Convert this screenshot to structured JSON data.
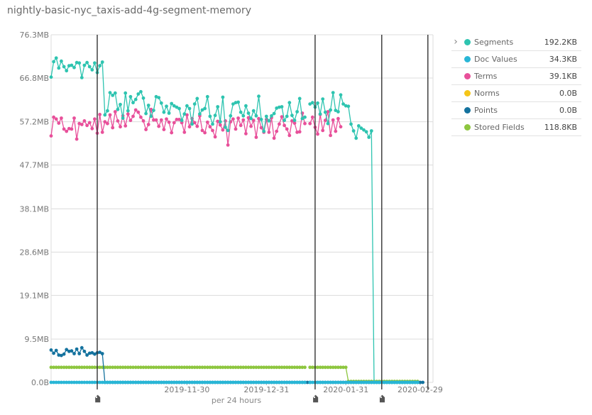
{
  "title": "nightly-basic-nyc_taxis-add-4g-segment-memory",
  "legend": {
    "toggle_icon": "chevron-right-icon",
    "items": [
      {
        "name": "Segments",
        "value": "192.2KB",
        "color": "#2ec4b0"
      },
      {
        "name": "Doc Values",
        "value": "34.3KB",
        "color": "#29b6d6"
      },
      {
        "name": "Terms",
        "value": "39.1KB",
        "color": "#e8509a"
      },
      {
        "name": "Norms",
        "value": "0.0B",
        "color": "#f5c518"
      },
      {
        "name": "Points",
        "value": "0.0B",
        "color": "#14729e"
      },
      {
        "name": "Stored Fields",
        "value": "118.8KB",
        "color": "#8dc63f"
      }
    ]
  },
  "chart_data": {
    "type": "line",
    "xlabel": "per 24 hours",
    "ylabel": "",
    "y_unit": "MB",
    "ylim": [
      0,
      76.3
    ],
    "y_ticks": [
      {
        "value": 0,
        "label": "0.0B"
      },
      {
        "value": 9.5,
        "label": "9.5MB"
      },
      {
        "value": 19.1,
        "label": "19.1MB"
      },
      {
        "value": 28.6,
        "label": "28.6MB"
      },
      {
        "value": 38.1,
        "label": "38.1MB"
      },
      {
        "value": 47.7,
        "label": "47.7MB"
      },
      {
        "value": 57.2,
        "label": "57.2MB"
      },
      {
        "value": 66.8,
        "label": "66.8MB"
      },
      {
        "value": 76.3,
        "label": "76.3MB"
      }
    ],
    "xlim": [
      "2019-10-08",
      "2020-03-05"
    ],
    "x_ticks": [
      "2019-11-30",
      "2019-12-31",
      "2020-01-31",
      "2020-02-29"
    ],
    "grid": true,
    "legend_position": "right",
    "annotations": [
      {
        "date": "2019-10-26",
        "icon": "tag-icon"
      },
      {
        "date": "2020-01-19",
        "icon": "tag-icon"
      },
      {
        "date": "2020-02-14",
        "icon": "tag-icon"
      },
      {
        "date": "2020-03-03",
        "icon": "none"
      }
    ],
    "series": [
      {
        "name": "Segments",
        "color": "#2ec4b0",
        "start": "2019-10-08",
        "values": [
          67.0,
          70.4,
          71.2,
          69.0,
          70.5,
          69.3,
          68.4,
          69.5,
          69.6,
          69.1,
          70.2,
          70.1,
          66.9,
          69.6,
          70.2,
          69.3,
          68.6,
          70.1,
          68.0,
          69.5,
          70.3,
          58.7,
          59.6,
          63.6,
          63.0,
          63.5,
          59.9,
          61.0,
          58.0,
          63.5,
          59.6,
          62.7,
          61.4,
          62.1,
          63.3,
          63.8,
          62.4,
          59.0,
          60.8,
          58.4,
          59.7,
          62.7,
          62.5,
          61.3,
          59.3,
          60.6,
          59.1,
          61.2,
          60.7,
          60.4,
          60.1,
          57.5,
          58.9,
          60.7,
          60.1,
          56.7,
          61.1,
          62.3,
          58.9,
          59.8,
          60.1,
          62.7,
          58.4,
          56.7,
          58.6,
          60.5,
          57.2,
          62.6,
          56.0,
          55.3,
          58.5,
          61.1,
          61.4,
          61.5,
          59.3,
          58.5,
          60.7,
          59.1,
          57.9,
          59.6,
          58.5,
          62.8,
          57.7,
          55.1,
          58.4,
          57.4,
          58.5,
          59.0,
          60.2,
          60.4,
          60.5,
          57.5,
          58.4,
          61.4,
          58.6,
          57.5,
          59.4,
          62.3,
          57.9,
          58.2,
          null,
          61.1,
          61.4,
          60.4,
          61.3,
          58.9,
          62.2,
          59.3,
          56.8,
          59.8,
          63.6,
          59.7,
          59.4,
          63.1,
          61.1,
          60.7,
          60.6,
          56.7,
          55.2,
          53.6,
          56.3,
          55.8,
          55.4,
          55.0,
          53.8,
          55.2,
          0,
          0,
          0,
          0,
          0,
          0,
          0,
          0,
          0,
          0,
          0,
          0,
          0,
          0,
          0,
          0,
          0,
          0
        ]
      },
      {
        "name": "Doc Values",
        "color": "#29b6d6",
        "start": "2019-10-08",
        "values": [
          0,
          0,
          0,
          0,
          0,
          0,
          0,
          0,
          0,
          0,
          0,
          0,
          0,
          0,
          0,
          0,
          0,
          0,
          0,
          0,
          0,
          0,
          0,
          0,
          0,
          0,
          0,
          0,
          0,
          0,
          0,
          0,
          0,
          0,
          0,
          0,
          0,
          0,
          0,
          0,
          0,
          0,
          0,
          0,
          0,
          0,
          0,
          0,
          0,
          0,
          0,
          0,
          0,
          0,
          0,
          0,
          0,
          0,
          0,
          0,
          0,
          0,
          0,
          0,
          0,
          0,
          0,
          0,
          0,
          0,
          0,
          0,
          0,
          0,
          0,
          0,
          0,
          0,
          0,
          0,
          0,
          0,
          0,
          0,
          0,
          0,
          0,
          0,
          0,
          0,
          0,
          0,
          0,
          0,
          0,
          0,
          0,
          0,
          0,
          0,
          null,
          0,
          0,
          0,
          0,
          0,
          0,
          0,
          0,
          0,
          0,
          0,
          0,
          0,
          0,
          0,
          0,
          0,
          0,
          0,
          0,
          0,
          0,
          0,
          0,
          0,
          0,
          0,
          0,
          0,
          0,
          0,
          0,
          0,
          0,
          0,
          0,
          0,
          0,
          0,
          0,
          0,
          0,
          0
        ]
      },
      {
        "name": "Terms",
        "color": "#e8509a",
        "start": "2019-10-08",
        "values": [
          54.1,
          58.2,
          57.8,
          56.9,
          58.0,
          55.6,
          55.1,
          55.7,
          55.6,
          58.0,
          53.4,
          56.8,
          56.6,
          57.4,
          56.4,
          57.0,
          55.7,
          57.8,
          54.7,
          58.8,
          54.9,
          57.2,
          56.8,
          58.7,
          55.9,
          59.4,
          57.4,
          56.1,
          58.5,
          56.3,
          58.9,
          57.5,
          58.4,
          59.8,
          59.3,
          58.2,
          57.4,
          55.5,
          56.6,
          59.9,
          57.6,
          57.6,
          56.2,
          57.6,
          55.5,
          57.8,
          57.1,
          54.8,
          57.0,
          57.7,
          57.7,
          57.0,
          54.9,
          58.7,
          56.1,
          57.9,
          57.0,
          56.2,
          58.5,
          55.3,
          54.8,
          57.1,
          56.1,
          55.3,
          53.9,
          57.3,
          56.5,
          55.4,
          57.4,
          52.1,
          57.2,
          57.8,
          55.6,
          58.0,
          56.4,
          57.6,
          54.6,
          58.1,
          56.2,
          57.5,
          53.8,
          57.9,
          55.9,
          54.9,
          57.7,
          54.9,
          58.1,
          53.6,
          55.1,
          56.7,
          58.3,
          56.4,
          55.6,
          54.2,
          57.4,
          56.9,
          54.9,
          55.0,
          59.1,
          56.8,
          null,
          56.8,
          58.2,
          56.0,
          54.5,
          58.8,
          55.3,
          57.5,
          59.4,
          54.2,
          57.6,
          55.1,
          57.9,
          56.1,
          null,
          null,
          null,
          null,
          null,
          null,
          null,
          null,
          null,
          null,
          null,
          null,
          null,
          null,
          null,
          null,
          null,
          null,
          null,
          null,
          null,
          null,
          null,
          null,
          null,
          null,
          null,
          null,
          null,
          null
        ]
      },
      {
        "name": "Norms",
        "color": "#f5c518",
        "start": "2019-10-08",
        "values": []
      },
      {
        "name": "Points",
        "color": "#14729e",
        "start": "2019-10-08",
        "values": [
          7.1,
          6.4,
          7.0,
          6.0,
          5.9,
          6.2,
          7.2,
          6.8,
          6.9,
          6.3,
          7.3,
          6.3,
          7.6,
          6.8,
          6.0,
          6.4,
          6.5,
          6.2,
          6.5,
          6.6,
          6.3,
          0,
          0,
          0,
          0,
          0,
          0,
          0,
          0,
          0,
          0,
          0,
          0,
          0,
          0,
          0,
          0,
          0,
          0,
          0,
          0,
          0,
          0,
          0,
          0,
          0,
          0,
          0,
          0,
          0,
          0,
          0,
          0,
          0,
          0,
          0,
          0,
          0,
          0,
          0,
          0,
          0,
          0,
          0,
          0,
          0,
          0,
          0,
          0,
          0,
          0,
          0,
          0,
          0,
          0,
          0,
          0,
          0,
          0,
          0,
          0,
          0,
          0,
          0,
          0,
          0,
          0,
          0,
          0,
          0,
          0,
          0,
          0,
          0,
          0,
          0,
          0,
          0,
          0,
          0,
          0,
          0,
          null,
          0,
          0,
          0,
          0,
          0,
          0,
          0,
          0,
          0,
          0,
          0,
          0,
          0,
          0,
          0,
          0,
          0,
          0,
          0,
          0,
          0,
          0,
          0,
          0,
          0,
          0,
          0,
          0,
          0,
          0,
          0,
          0,
          0,
          0,
          0,
          0,
          0,
          0,
          0,
          0,
          0,
          0,
          0
        ]
      },
      {
        "name": "Stored Fields",
        "color": "#8dc63f",
        "start": "2019-10-08",
        "values": [
          3.3,
          3.3,
          3.3,
          3.3,
          3.3,
          3.3,
          3.3,
          3.3,
          3.3,
          3.3,
          3.3,
          3.3,
          3.3,
          3.3,
          3.3,
          3.3,
          3.3,
          3.3,
          3.3,
          3.3,
          3.3,
          3.3,
          3.3,
          3.3,
          3.3,
          3.3,
          3.3,
          3.3,
          3.3,
          3.3,
          3.3,
          3.3,
          3.3,
          3.3,
          3.3,
          3.3,
          3.3,
          3.3,
          3.3,
          3.3,
          3.3,
          3.3,
          3.3,
          3.3,
          3.3,
          3.3,
          3.3,
          3.3,
          3.3,
          3.3,
          3.3,
          3.3,
          3.3,
          3.3,
          3.3,
          3.3,
          3.3,
          3.3,
          3.3,
          3.3,
          3.3,
          3.3,
          3.3,
          3.3,
          3.3,
          3.3,
          3.3,
          3.3,
          3.3,
          3.3,
          3.3,
          3.3,
          3.3,
          3.3,
          3.3,
          3.3,
          3.3,
          3.3,
          3.3,
          3.3,
          3.3,
          3.3,
          3.3,
          3.3,
          3.3,
          3.3,
          3.3,
          3.3,
          3.3,
          3.3,
          3.3,
          3.3,
          3.3,
          3.3,
          3.3,
          3.3,
          3.3,
          3.3,
          3.3,
          3.3,
          null,
          3.3,
          3.3,
          3.3,
          3.3,
          3.3,
          3.3,
          3.3,
          3.3,
          3.3,
          3.3,
          3.3,
          3.3,
          3.3,
          3.3,
          3.3,
          0.2,
          0.2,
          0.2,
          0.2,
          0.2,
          0.2,
          0.2,
          0.2,
          0.2,
          0.2,
          0.2,
          0.2,
          0.2,
          0.2,
          0.2,
          0.2,
          0.2,
          0.2,
          0.2,
          0.2,
          0.2,
          0.2,
          0.2,
          0.2,
          0.2,
          0.2,
          0.2,
          0.2
        ]
      }
    ]
  }
}
